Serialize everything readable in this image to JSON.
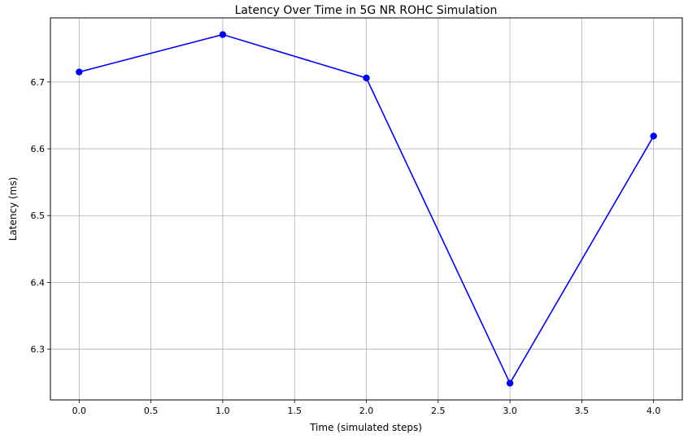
{
  "chart_data": {
    "type": "line",
    "title": "Latency Over Time in 5G NR ROHC Simulation",
    "xlabel": "Time (simulated steps)",
    "ylabel": "Latency (ms)",
    "x": [
      0,
      1,
      2,
      3,
      4
    ],
    "series": [
      {
        "values": [
          6.715,
          6.771,
          6.706,
          6.249,
          6.619
        ]
      }
    ],
    "xlim": [
      -0.2,
      4.2
    ],
    "ylim": [
      6.224,
      6.796
    ],
    "xticks": [
      "0.0",
      "0.5",
      "1.0",
      "1.5",
      "2.0",
      "2.5",
      "3.0",
      "3.5",
      "4.0"
    ],
    "yticks": [
      "6.3",
      "6.4",
      "6.5",
      "6.6",
      "6.7"
    ],
    "grid": true,
    "marker": "circle",
    "line_color": "#0000ff",
    "grid_color": "#b0b0b0"
  }
}
